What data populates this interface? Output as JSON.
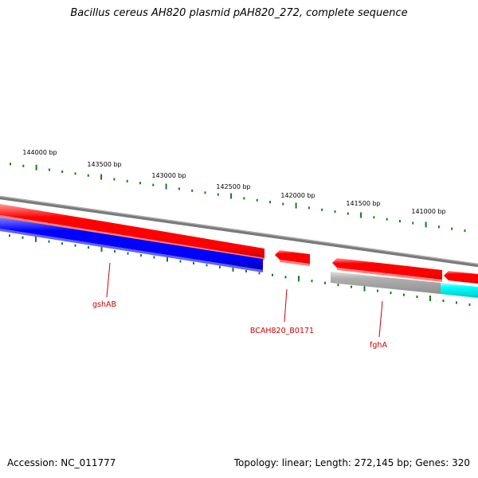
{
  "title": "Bacillus cereus AH820 plasmid pAH820_272, complete sequence",
  "footer": {
    "accession": "Accession: NC_011777",
    "summary": "Topology: linear; Length: 272,145 bp; Genes: 320"
  },
  "scale_labels": [
    "144000 bp",
    "143500 bp",
    "143000 bp",
    "142500 bp",
    "142000 bp",
    "141500 bp",
    "141000 bp"
  ],
  "gene_labels": [
    "gshAB",
    "BCAH820_B0171",
    "fghA"
  ],
  "colors": {
    "backbone": "#808080",
    "forward_gene": "#ff0000",
    "reverse_gene": "#0000ff",
    "gray_gene": "#b0b0b0",
    "cyan_gene": "#00ffff",
    "tick": "#1a7a1a",
    "label": "#cc0000"
  }
}
